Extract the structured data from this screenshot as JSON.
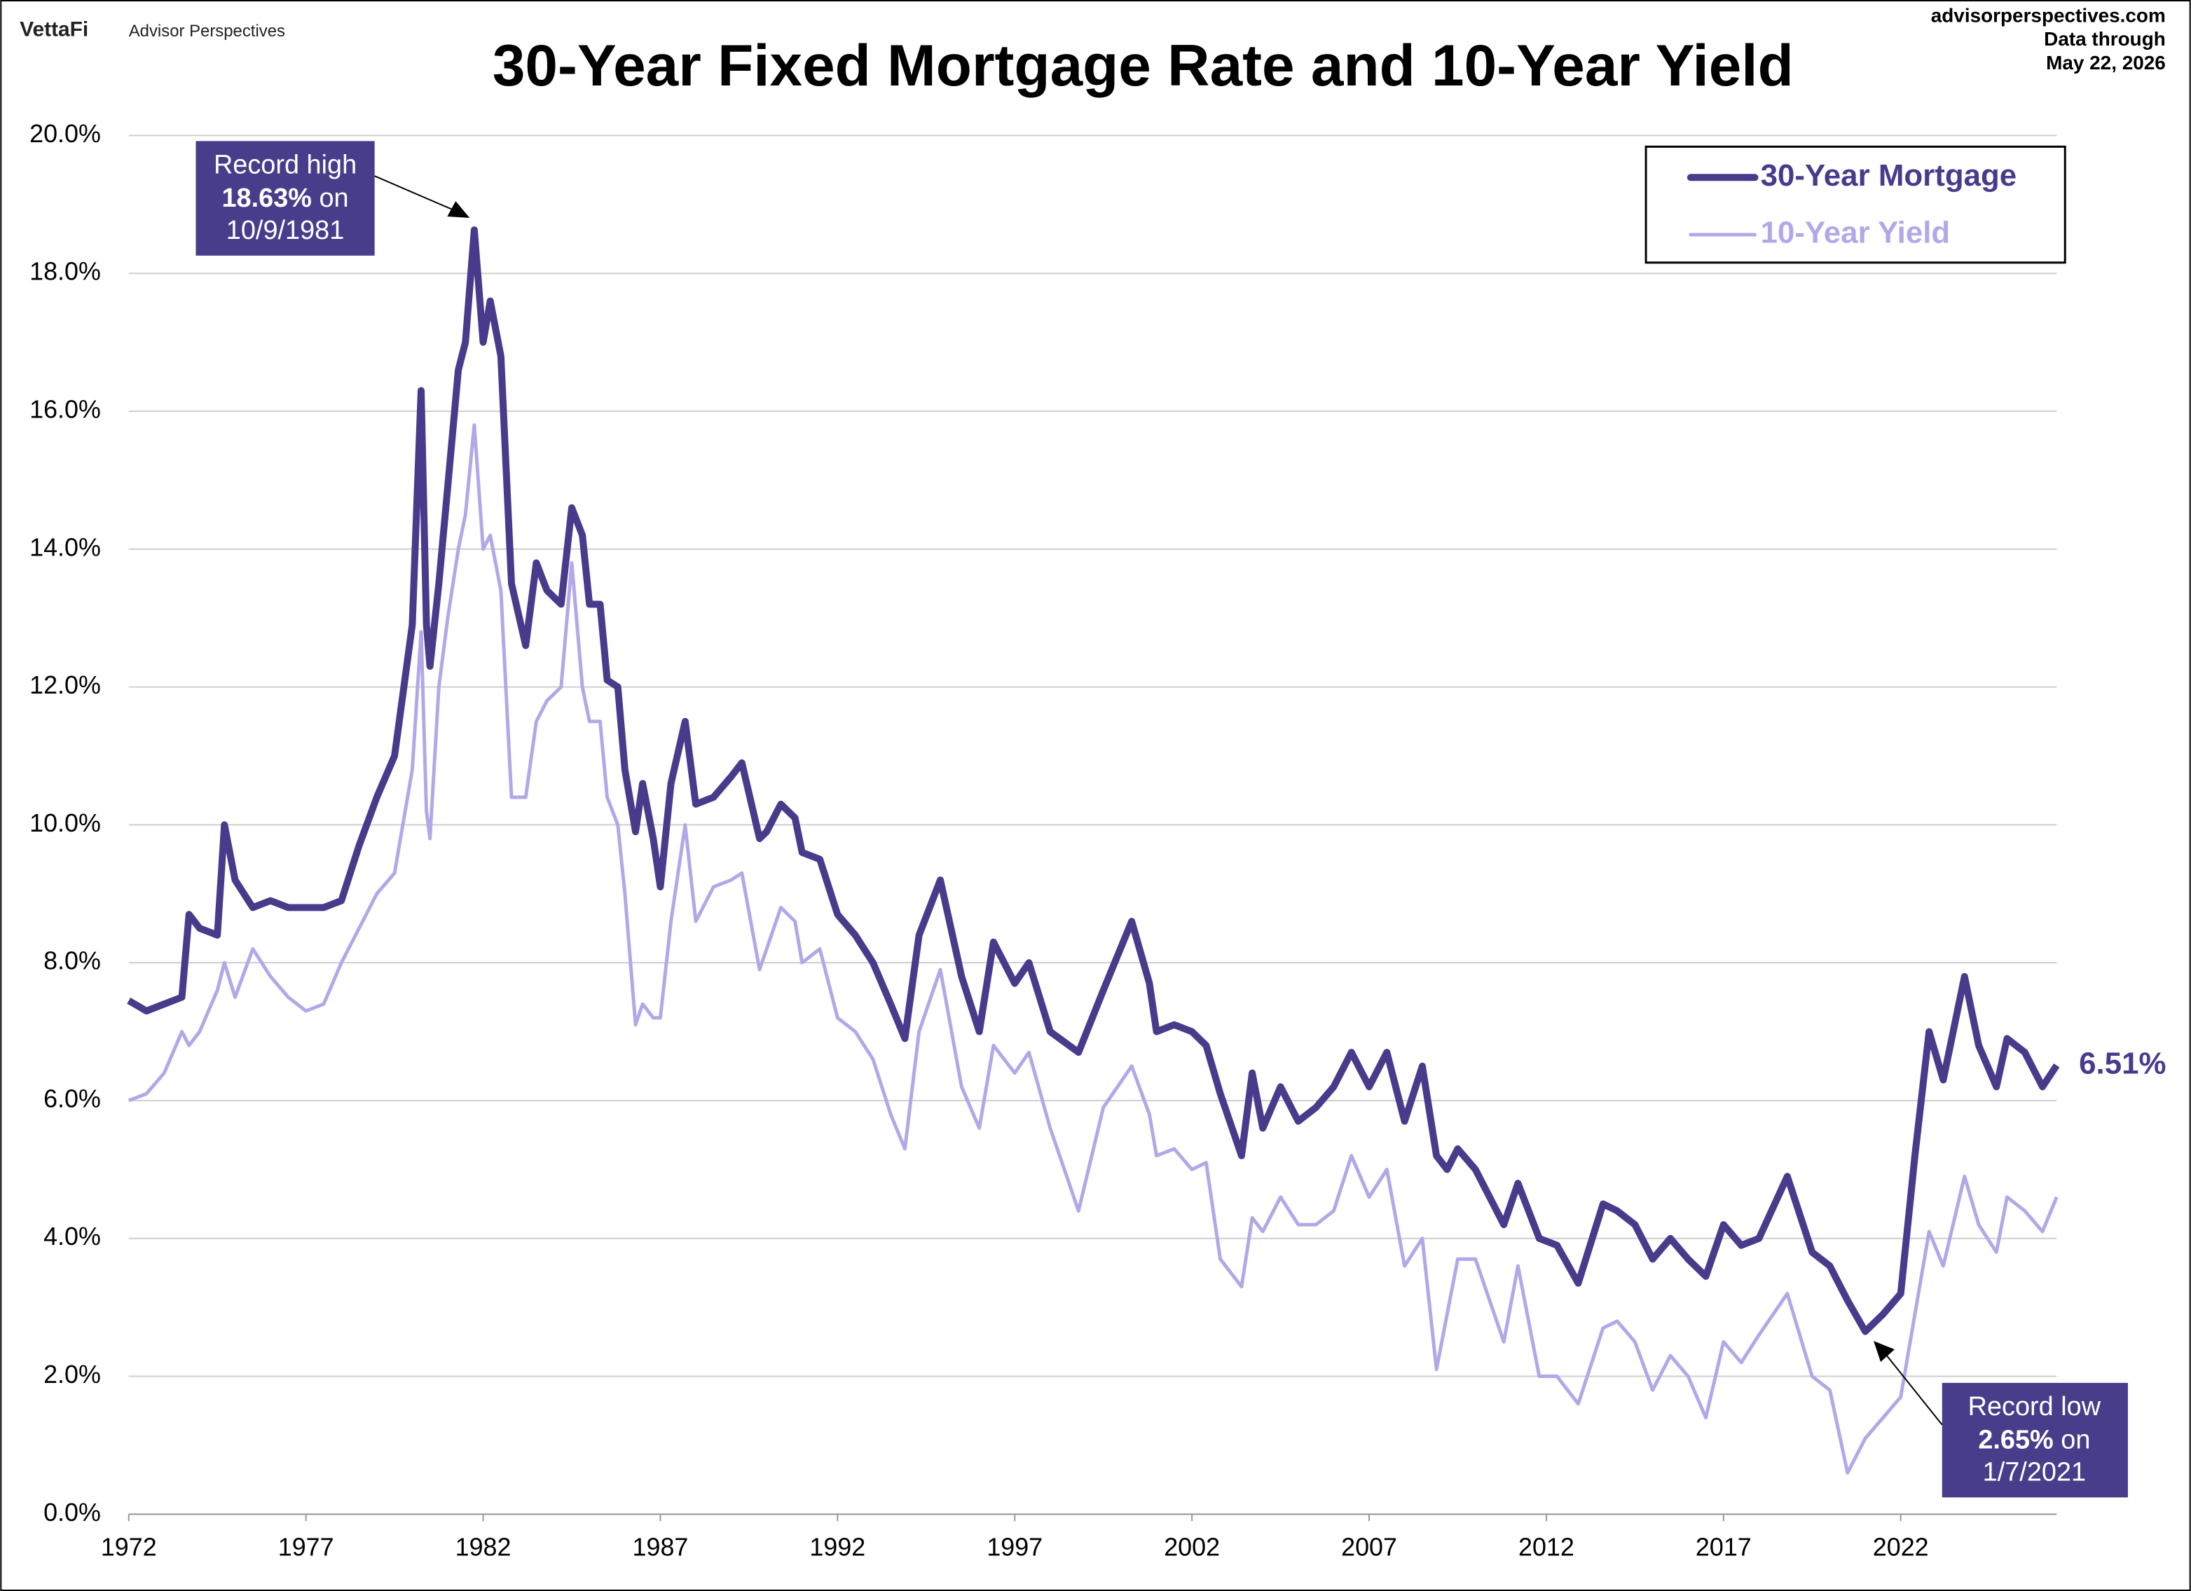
{
  "header": {
    "brand": "VettaFi",
    "brand_sub": "Advisor Perspectives",
    "site": "advisorperspectives.com",
    "data_note": "Data through",
    "data_date": "May 22, 2026"
  },
  "chart_data": {
    "type": "line",
    "title": "30-Year Fixed Mortgage Rate and 10-Year Yield",
    "x": [
      1972,
      1972.5,
      1973,
      1973.5,
      1973.7,
      1974,
      1974.5,
      1974.7,
      1975,
      1975.5,
      1976,
      1976.5,
      1977,
      1977.5,
      1978,
      1978.5,
      1979,
      1979.5,
      1980,
      1980.25,
      1980.4,
      1980.5,
      1980.75,
      1981,
      1981.3,
      1981.5,
      1981.75,
      1982,
      1982.2,
      1982.5,
      1982.8,
      1983.2,
      1983.5,
      1983.8,
      1984.2,
      1984.5,
      1984.8,
      1985,
      1985.3,
      1985.5,
      1985.8,
      1986,
      1986.3,
      1986.5,
      1986.8,
      1987,
      1987.3,
      1987.7,
      1988,
      1988.5,
      1989,
      1989.3,
      1989.8,
      1990,
      1990.4,
      1990.8,
      1991,
      1991.5,
      1992,
      1992.5,
      1993,
      1993.5,
      1993.9,
      1994.3,
      1994.9,
      1995.5,
      1996,
      1996.4,
      1997,
      1997.4,
      1998,
      1998.8,
      1999.5,
      2000.3,
      2000.8,
      2001,
      2001.5,
      2002,
      2002.4,
      2002.8,
      2003.4,
      2003.7,
      2004,
      2004.5,
      2005,
      2005.5,
      2006,
      2006.5,
      2007,
      2007.5,
      2008,
      2008.5,
      2008.9,
      2009.2,
      2009.5,
      2010,
      2010.8,
      2011.2,
      2011.8,
      2012.3,
      2012.9,
      2013.6,
      2014,
      2014.5,
      2015,
      2015.5,
      2016,
      2016.5,
      2017,
      2017.5,
      2018,
      2018.8,
      2019.5,
      2020,
      2020.5,
      2021,
      2021.5,
      2022,
      2022.4,
      2022.8,
      2023.2,
      2023.8,
      2024.2,
      2024.7,
      2025,
      2025.5,
      2026,
      2026.4
    ],
    "series": [
      {
        "name": "30-Year Mortgage",
        "color": "#4a3a8c",
        "width": 5,
        "values": [
          7.45,
          7.3,
          7.4,
          7.5,
          8.7,
          8.5,
          8.4,
          10.0,
          9.2,
          8.8,
          8.9,
          8.8,
          8.8,
          8.8,
          8.9,
          9.7,
          10.4,
          11.0,
          12.9,
          16.3,
          12.9,
          12.3,
          13.5,
          14.9,
          16.6,
          17.0,
          18.63,
          17.0,
          17.6,
          16.8,
          13.5,
          12.6,
          13.8,
          13.4,
          13.2,
          14.6,
          14.2,
          13.2,
          13.2,
          12.1,
          12.0,
          10.8,
          9.9,
          10.6,
          9.8,
          9.1,
          10.6,
          11.5,
          10.3,
          10.4,
          10.7,
          10.9,
          9.8,
          9.9,
          10.3,
          10.1,
          9.6,
          9.5,
          8.7,
          8.4,
          8.0,
          7.4,
          6.9,
          8.4,
          9.2,
          7.8,
          7.0,
          8.3,
          7.7,
          8.0,
          7.0,
          6.7,
          7.6,
          8.6,
          7.7,
          7.0,
          7.1,
          7.0,
          6.8,
          6.1,
          5.2,
          6.4,
          5.6,
          6.2,
          5.7,
          5.9,
          6.2,
          6.7,
          6.2,
          6.7,
          5.7,
          6.5,
          5.2,
          5.0,
          5.3,
          5.0,
          4.2,
          4.8,
          4.0,
          3.9,
          3.35,
          4.5,
          4.4,
          4.2,
          3.7,
          4.0,
          3.7,
          3.45,
          4.2,
          3.9,
          4.0,
          4.9,
          3.8,
          3.6,
          3.1,
          2.65,
          2.9,
          3.2,
          5.2,
          7.0,
          6.3,
          7.8,
          6.8,
          6.2,
          6.9,
          6.7,
          6.2,
          6.51
        ]
      },
      {
        "name": "10-Year Yield",
        "color": "#b4a7e8",
        "width": 2.5,
        "values": [
          6.0,
          6.1,
          6.4,
          7.0,
          6.8,
          7.0,
          7.6,
          8.0,
          7.5,
          8.2,
          7.8,
          7.5,
          7.3,
          7.4,
          8.0,
          8.5,
          9.0,
          9.3,
          10.8,
          12.8,
          10.2,
          9.8,
          12.0,
          13.0,
          14.0,
          14.5,
          15.8,
          14.0,
          14.2,
          13.4,
          10.4,
          10.4,
          11.5,
          11.8,
          12.0,
          13.8,
          12.0,
          11.5,
          11.5,
          10.4,
          10.0,
          9.0,
          7.1,
          7.4,
          7.2,
          7.2,
          8.6,
          10.0,
          8.6,
          9.1,
          9.2,
          9.3,
          7.9,
          8.2,
          8.8,
          8.6,
          8.0,
          8.2,
          7.2,
          7.0,
          6.6,
          5.8,
          5.3,
          7.0,
          7.9,
          6.2,
          5.6,
          6.8,
          6.4,
          6.7,
          5.6,
          4.4,
          5.9,
          6.5,
          5.8,
          5.2,
          5.3,
          5.0,
          5.1,
          3.7,
          3.3,
          4.3,
          4.1,
          4.6,
          4.2,
          4.2,
          4.4,
          5.2,
          4.6,
          5.0,
          3.6,
          4.0,
          2.1,
          2.9,
          3.7,
          3.7,
          2.5,
          3.6,
          2.0,
          2.0,
          1.6,
          2.7,
          2.8,
          2.5,
          1.8,
          2.3,
          2.0,
          1.4,
          2.5,
          2.2,
          2.6,
          3.2,
          2.0,
          1.8,
          0.6,
          1.1,
          1.4,
          1.7,
          2.9,
          4.1,
          3.6,
          4.9,
          4.2,
          3.8,
          4.6,
          4.4,
          4.1,
          4.6
        ]
      }
    ],
    "xlim": [
      1972,
      2026.4
    ],
    "xticks": [
      1972,
      1977,
      1982,
      1987,
      1992,
      1997,
      2002,
      2007,
      2012,
      2017,
      2022
    ],
    "ylim": [
      0,
      20
    ],
    "yticks": [
      {
        "value": 0,
        "label": "0.0%"
      },
      {
        "value": 2,
        "label": "2.0%"
      },
      {
        "value": 4,
        "label": "4.0%"
      },
      {
        "value": 6,
        "label": "6.0%"
      },
      {
        "value": 8,
        "label": "8.0%"
      },
      {
        "value": 10,
        "label": "10.0%"
      },
      {
        "value": 12,
        "label": "12.0%"
      },
      {
        "value": 14,
        "label": "14.0%"
      },
      {
        "value": 16,
        "label": "16.0%"
      },
      {
        "value": 18,
        "label": "18.0%"
      },
      {
        "value": 20,
        "label": "20.0%"
      }
    ],
    "grid": true,
    "legend": "top-right",
    "annotations": [
      {
        "title": "Record high",
        "value": "18.63%",
        "connector": "on",
        "date": "10/9/1981"
      },
      {
        "title": "Record low",
        "value": "2.65%",
        "connector": "on",
        "date": "1/7/2021"
      }
    ],
    "end_label": "6.51%"
  }
}
